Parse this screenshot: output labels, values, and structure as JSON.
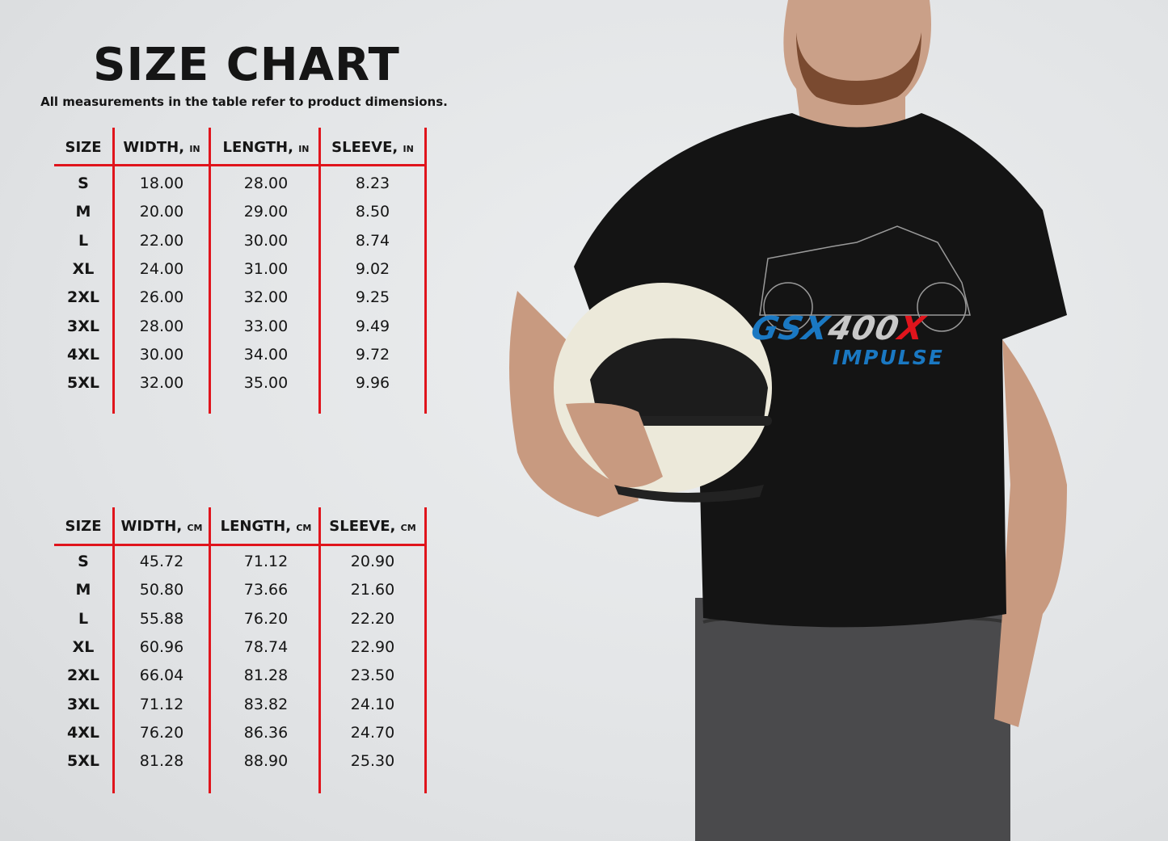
{
  "title": "SIZE CHART",
  "subtitle": "All measurements in the table refer to product dimensions.",
  "tables": [
    {
      "headers": [
        {
          "label": "SIZE",
          "unit": ""
        },
        {
          "label": "WIDTH,",
          "unit": "IN"
        },
        {
          "label": "LENGTH,",
          "unit": "IN"
        },
        {
          "label": "SLEEVE,",
          "unit": "IN"
        }
      ],
      "rows": [
        [
          "S",
          "18.00",
          "28.00",
          "8.23"
        ],
        [
          "M",
          "20.00",
          "29.00",
          "8.50"
        ],
        [
          "L",
          "22.00",
          "30.00",
          "8.74"
        ],
        [
          "XL",
          "24.00",
          "31.00",
          "9.02"
        ],
        [
          "2XL",
          "26.00",
          "32.00",
          "9.25"
        ],
        [
          "3XL",
          "28.00",
          "33.00",
          "9.49"
        ],
        [
          "4XL",
          "30.00",
          "34.00",
          "9.72"
        ],
        [
          "5XL",
          "32.00",
          "35.00",
          "9.96"
        ]
      ]
    },
    {
      "headers": [
        {
          "label": "SIZE",
          "unit": ""
        },
        {
          "label": "WIDTH,",
          "unit": "CM"
        },
        {
          "label": "LENGTH,",
          "unit": "CM"
        },
        {
          "label": "SLEEVE,",
          "unit": "CM"
        }
      ],
      "rows": [
        [
          "S",
          "45.72",
          "71.12",
          "20.90"
        ],
        [
          "M",
          "50.80",
          "73.66",
          "21.60"
        ],
        [
          "L",
          "55.88",
          "76.20",
          "22.20"
        ],
        [
          "XL",
          "60.96",
          "78.74",
          "22.90"
        ],
        [
          "2XL",
          "66.04",
          "81.28",
          "23.50"
        ],
        [
          "3XL",
          "71.12",
          "83.82",
          "24.10"
        ],
        [
          "4XL",
          "76.20",
          "86.36",
          "24.70"
        ],
        [
          "5XL",
          "81.28",
          "88.90",
          "25.30"
        ]
      ]
    }
  ],
  "shirt_print": {
    "line1_a": "GSX",
    "line1_b": "400",
    "line1_c": "X",
    "line2": "IMPULSE"
  },
  "colors": {
    "table_lines": "#e0141c",
    "print_blue": "#1a78c2",
    "print_silver": "#c8c8c8",
    "print_red": "#e0141c",
    "shirt": "#141414"
  }
}
